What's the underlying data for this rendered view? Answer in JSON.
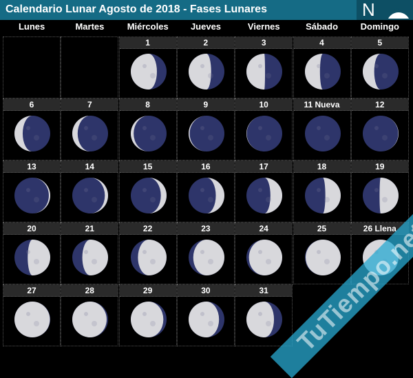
{
  "header": {
    "title": "Calendario Lunar Agosto de 2018 - Fases Lunares",
    "logo_letter": "N",
    "logo_icon": "globe-icon"
  },
  "weekdays": [
    "Lunes",
    "Martes",
    "Miércoles",
    "Jueves",
    "Viernes",
    "Sábado",
    "Domingo"
  ],
  "first_weekday_offset": 2,
  "colors": {
    "header": "#156b85",
    "moon_dark": "#2e356a",
    "moon_lit": "#d8d8dc"
  },
  "days": [
    {
      "label": "1",
      "illum": 0.73,
      "waxing": false
    },
    {
      "label": "2",
      "illum": 0.63,
      "waxing": false
    },
    {
      "label": "3",
      "illum": 0.52,
      "waxing": false
    },
    {
      "label": "4",
      "illum": 0.42,
      "waxing": false
    },
    {
      "label": "5",
      "illum": 0.32,
      "waxing": false
    },
    {
      "label": "6",
      "illum": 0.23,
      "waxing": false
    },
    {
      "label": "7",
      "illum": 0.15,
      "waxing": false
    },
    {
      "label": "8",
      "illum": 0.08,
      "waxing": false
    },
    {
      "label": "9",
      "illum": 0.03,
      "waxing": false
    },
    {
      "label": "10",
      "illum": 0.01,
      "waxing": false
    },
    {
      "label": "11 Nueva",
      "illum": 0,
      "waxing": true
    },
    {
      "label": "12",
      "illum": 0.01,
      "waxing": true
    },
    {
      "label": "13",
      "illum": 0.04,
      "waxing": true
    },
    {
      "label": "14",
      "illum": 0.09,
      "waxing": true
    },
    {
      "label": "15",
      "illum": 0.16,
      "waxing": true
    },
    {
      "label": "16",
      "illum": 0.24,
      "waxing": true
    },
    {
      "label": "17",
      "illum": 0.33,
      "waxing": true
    },
    {
      "label": "18",
      "illum": 0.43,
      "waxing": true
    },
    {
      "label": "19",
      "illum": 0.53,
      "waxing": true
    },
    {
      "label": "20",
      "illum": 0.63,
      "waxing": true
    },
    {
      "label": "21",
      "illum": 0.72,
      "waxing": true
    },
    {
      "label": "22",
      "illum": 0.8,
      "waxing": true
    },
    {
      "label": "23",
      "illum": 0.87,
      "waxing": true
    },
    {
      "label": "24",
      "illum": 0.93,
      "waxing": true
    },
    {
      "label": "25",
      "illum": 0.98,
      "waxing": true
    },
    {
      "label": "26 Llena",
      "illum": 1,
      "waxing": true
    },
    {
      "label": "27",
      "illum": 0.99,
      "waxing": false
    },
    {
      "label": "28",
      "illum": 0.96,
      "waxing": false
    },
    {
      "label": "29",
      "illum": 0.91,
      "waxing": false
    },
    {
      "label": "30",
      "illum": 0.85,
      "waxing": false
    },
    {
      "label": "31",
      "illum": 0.77,
      "waxing": false
    }
  ],
  "watermark": "TuTiempo.net"
}
